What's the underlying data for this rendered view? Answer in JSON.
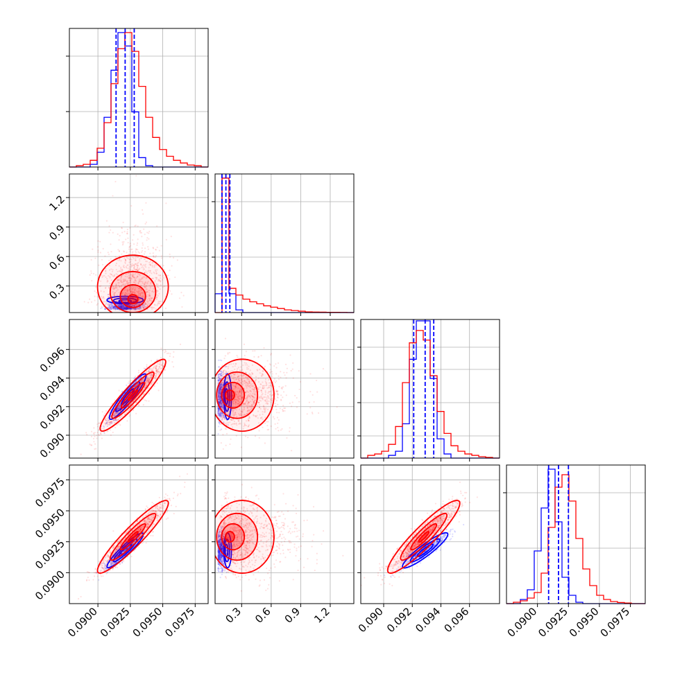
{
  "chart_data": {
    "type": "corner",
    "series": [
      {
        "name": "",
        "color": "#0000ff"
      },
      {
        "name": "",
        "color": "#ff0000"
      }
    ],
    "parameters": [
      {
        "range": [
          0.0878,
          0.0985
        ],
        "ticks": [
          "0.0900",
          "0.0925",
          "0.0950",
          "0.0975"
        ],
        "tick_values": [
          0.09,
          0.0925,
          0.095,
          0.0975
        ]
      },
      {
        "range": [
          0.03,
          1.44
        ],
        "ticks": [
          "0.3",
          "0.6",
          "0.9",
          "1.2"
        ],
        "tick_values": [
          0.3,
          0.6,
          0.9,
          1.2
        ]
      },
      {
        "range": [
          0.0884,
          0.0981
        ],
        "ticks": [
          "0.090",
          "0.092",
          "0.094",
          "0.096"
        ],
        "tick_values": [
          0.09,
          0.092,
          0.094,
          0.096
        ]
      },
      {
        "range": [
          0.0875,
          0.0987
        ],
        "ticks": [
          "0.0900",
          "0.0925",
          "0.0950",
          "0.0975"
        ],
        "tick_values": [
          0.09,
          0.0925,
          0.095,
          0.0975
        ]
      }
    ],
    "marginals": [
      {
        "red": [
          0,
          0.01,
          0.02,
          0.05,
          0.14,
          0.33,
          0.62,
          0.88,
          1.0,
          0.86,
          0.6,
          0.37,
          0.22,
          0.13,
          0.08,
          0.05,
          0.03,
          0.015,
          0.01,
          0
        ],
        "blue": [
          0,
          0,
          0,
          0.02,
          0.11,
          0.37,
          0.72,
          1.0,
          0.9,
          0.41,
          0.07,
          0.01,
          0,
          0,
          0,
          0,
          0,
          0,
          0,
          0
        ],
        "quantiles": [
          0.0914,
          0.0921,
          0.0928
        ],
        "ymax_frac": 0.97
      },
      {
        "red": [
          0.0,
          1.0,
          0.18,
          0.13,
          0.1,
          0.08,
          0.065,
          0.05,
          0.04,
          0.03,
          0.02,
          0.015,
          0.01,
          0.005,
          0.004,
          0.003,
          0.002,
          0.002,
          0.001,
          0
        ],
        "blue": [
          0.14,
          1.0,
          0.14,
          0.02,
          0,
          0,
          0,
          0,
          0,
          0,
          0,
          0,
          0,
          0,
          0,
          0,
          0,
          0,
          0,
          0
        ],
        "quantiles": [
          0.1,
          0.14,
          0.18
        ],
        "ymax_frac": 0.97
      },
      {
        "red": [
          0,
          0.02,
          0.03,
          0.05,
          0.1,
          0.23,
          0.55,
          0.84,
          0.93,
          0.86,
          0.6,
          0.34,
          0.18,
          0.09,
          0.05,
          0.03,
          0.02,
          0.01,
          0.005,
          0
        ],
        "blue": [
          0,
          0,
          0,
          0,
          0.02,
          0.05,
          0.25,
          0.72,
          1.0,
          1.0,
          0.58,
          0.14,
          0.03,
          0,
          0,
          0,
          0,
          0,
          0,
          0
        ],
        "quantiles": [
          0.0921,
          0.0929,
          0.0935
        ],
        "ymax_frac": 0.99
      },
      {
        "red": [
          0,
          0.01,
          0.02,
          0.04,
          0.08,
          0.22,
          0.55,
          0.84,
          0.93,
          0.74,
          0.47,
          0.25,
          0.13,
          0.06,
          0.03,
          0.015,
          0.008,
          0.004,
          0,
          0
        ],
        "blue": [
          0,
          0,
          0.03,
          0.1,
          0.38,
          0.69,
          0.97,
          0.59,
          0.19,
          0.06,
          0.01,
          0,
          0,
          0,
          0,
          0,
          0,
          0,
          0,
          0
        ],
        "quantiles": [
          0.0909,
          0.0917,
          0.0925
        ],
        "ymax_frac": 1.0
      }
    ],
    "joint": {
      "p1_p0": {
        "red_center": [
          0.0927,
          0.145
        ],
        "red_spread": [
          0.0013,
          0.28
        ],
        "blue_center": [
          0.0921,
          0.14
        ],
        "blue_spread": [
          0.0007,
          0.035
        ],
        "corr": 0.0
      },
      "p2_p0": {
        "red_center": [
          0.0927,
          0.0928
        ],
        "red_spread": [
          0.0012,
          0.0012
        ],
        "blue_center": [
          0.0923,
          0.0927
        ],
        "blue_spread": [
          0.0007,
          0.0008
        ],
        "corr": 0.93
      },
      "p2_p1": {
        "red_center": [
          0.16,
          0.0928
        ],
        "red_spread": [
          0.28,
          0.0012
        ],
        "blue_center": [
          0.14,
          0.0927
        ],
        "blue_spread": [
          0.035,
          0.0008
        ],
        "corr": 0.0
      },
      "p3_p0": {
        "red_center": [
          0.0927,
          0.0929
        ],
        "red_spread": [
          0.0013,
          0.0014
        ],
        "blue_center": [
          0.0921,
          0.0918
        ],
        "blue_spread": [
          0.0007,
          0.0007
        ],
        "corr": 0.93
      },
      "p3_p1": {
        "red_center": [
          0.16,
          0.0929
        ],
        "red_spread": [
          0.28,
          0.0014
        ],
        "blue_center": [
          0.14,
          0.0918
        ],
        "blue_spread": [
          0.035,
          0.0007
        ],
        "corr": 0.0
      },
      "p3_p2": {
        "red_center": [
          0.0928,
          0.0929
        ],
        "red_spread": [
          0.0012,
          0.0014
        ],
        "blue_center": [
          0.0929,
          0.0918
        ],
        "blue_spread": [
          0.0008,
          0.0007
        ],
        "corr": 0.92
      }
    },
    "grid": true,
    "xlabel": "",
    "ylabel": "",
    "title": ""
  }
}
